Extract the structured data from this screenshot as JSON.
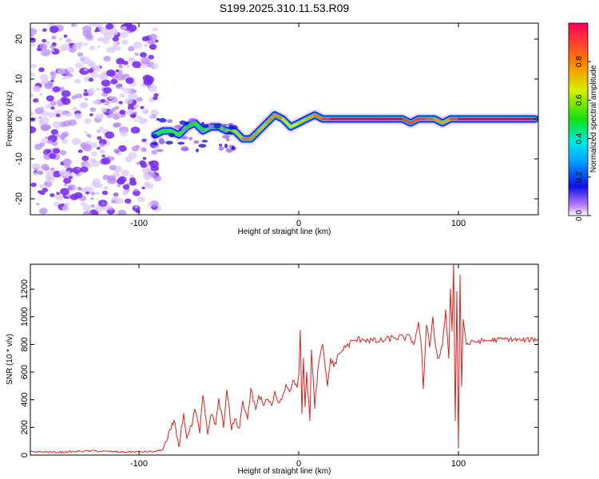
{
  "title": "S199.2025.310.11.53.R09",
  "colors": {
    "snr_line": "#e0201c",
    "speckle": "#8a3cf0",
    "track_core": "#e8000f",
    "track_edge": "#1414d8",
    "axis": "#000000"
  },
  "chart_data": [
    {
      "type": "heatmap",
      "xlabel": "Height of straight line (km)",
      "ylabel": "Frequency (Hz)",
      "xlim": [
        -168,
        150
      ],
      "ylim": [
        -24,
        24
      ],
      "xticks": [
        -100,
        0,
        100
      ],
      "yticks": [
        -20,
        -10,
        0,
        10,
        20
      ],
      "xtick_labels": [
        "-100",
        "0",
        "100"
      ],
      "ytick_labels": [
        "-20",
        "-10",
        "0",
        "10",
        "20"
      ],
      "noise_region_x": [
        -168,
        -90
      ],
      "signal_track": {
        "x": [
          -90,
          -85,
          -80,
          -75,
          -70,
          -65,
          -60,
          -55,
          -50,
          -45,
          -40,
          -35,
          -30,
          -25,
          -20,
          -15,
          -10,
          -5,
          0,
          5,
          10,
          15,
          20,
          30,
          40,
          50,
          60,
          65,
          70,
          75,
          80,
          85,
          90,
          95,
          100,
          110,
          120,
          130,
          140,
          148
        ],
        "frequency": [
          -4,
          -3,
          -3,
          -4,
          -2,
          -1,
          -3,
          -2,
          -2,
          -3,
          -3,
          -5,
          -5,
          -3,
          -1,
          1,
          0,
          -2,
          -1,
          0,
          1,
          0,
          0,
          0,
          0,
          0,
          0,
          0,
          -1,
          0,
          0,
          0,
          -1,
          0,
          0,
          0,
          0,
          0,
          0,
          0
        ],
        "amplitude": [
          0.3,
          0.35,
          0.3,
          0.4,
          0.3,
          0.3,
          0.35,
          0.35,
          0.3,
          0.4,
          0.4,
          0.75,
          0.8,
          0.6,
          0.6,
          0.8,
          0.6,
          0.45,
          0.55,
          0.6,
          0.7,
          0.8,
          0.95,
          1.0,
          0.95,
          1.0,
          1.0,
          0.95,
          0.8,
          0.9,
          0.85,
          0.75,
          0.6,
          0.7,
          1.0,
          1.0,
          1.0,
          1.0,
          1.0,
          1.0
        ]
      },
      "colorbar": {
        "label": "Normalized spectral amplitude",
        "range": [
          0,
          1
        ],
        "ticks": [
          0.0,
          0.2,
          0.4,
          0.6,
          0.8
        ],
        "tick_labels": [
          "0.0",
          "0.2",
          "0.4",
          "0.6",
          "0.8"
        ]
      }
    },
    {
      "type": "line",
      "xlabel": "Height of straight line (km)",
      "ylabel": "SNR (10 * v/v)",
      "xlim": [
        -168,
        150
      ],
      "ylim": [
        0,
        1380
      ],
      "xticks": [
        -100,
        0,
        100
      ],
      "yticks": [
        0,
        200,
        400,
        600,
        800,
        1000,
        1200
      ],
      "xtick_labels": [
        "-100",
        "0",
        "100"
      ],
      "ytick_labels": [
        "0",
        "200",
        "400",
        "600",
        "800",
        "1000",
        "1200"
      ],
      "series": [
        {
          "name": "SNR",
          "x": [
            -168,
            -150,
            -130,
            -110,
            -90,
            -85,
            -82,
            -78,
            -75,
            -72,
            -70,
            -67,
            -65,
            -62,
            -60,
            -57,
            -55,
            -52,
            -50,
            -47,
            -45,
            -42,
            -40,
            -37,
            -35,
            -32,
            -30,
            -27,
            -25,
            -22,
            -20,
            -17,
            -15,
            -12,
            -10,
            -8,
            -5,
            -3,
            -1,
            0,
            1,
            2,
            3,
            4,
            5,
            7,
            8,
            10,
            12,
            15,
            18,
            20,
            22,
            25,
            30,
            35,
            40,
            50,
            60,
            70,
            72,
            75,
            77,
            78,
            80,
            82,
            84,
            85,
            87,
            90,
            92,
            94,
            95,
            96,
            97,
            98,
            99,
            100,
            101,
            102,
            103,
            105,
            110,
            120,
            130,
            140,
            150
          ],
          "y": [
            25,
            20,
            30,
            22,
            25,
            40,
            120,
            250,
            60,
            300,
            120,
            210,
            330,
            160,
            430,
            150,
            290,
            220,
            410,
            200,
            470,
            180,
            260,
            200,
            390,
            260,
            480,
            330,
            430,
            360,
            400,
            360,
            460,
            380,
            430,
            510,
            470,
            540,
            490,
            580,
            900,
            300,
            700,
            350,
            600,
            250,
            760,
            340,
            620,
            800,
            500,
            700,
            640,
            730,
            790,
            830,
            840,
            820,
            850,
            850,
            800,
            960,
            750,
            480,
            940,
            780,
            1000,
            850,
            700,
            790,
            1050,
            700,
            1200,
            900,
            1380,
            250,
            1180,
            50,
            1300,
            500,
            980,
            800,
            820,
            830,
            840,
            830,
            840
          ]
        }
      ]
    }
  ]
}
